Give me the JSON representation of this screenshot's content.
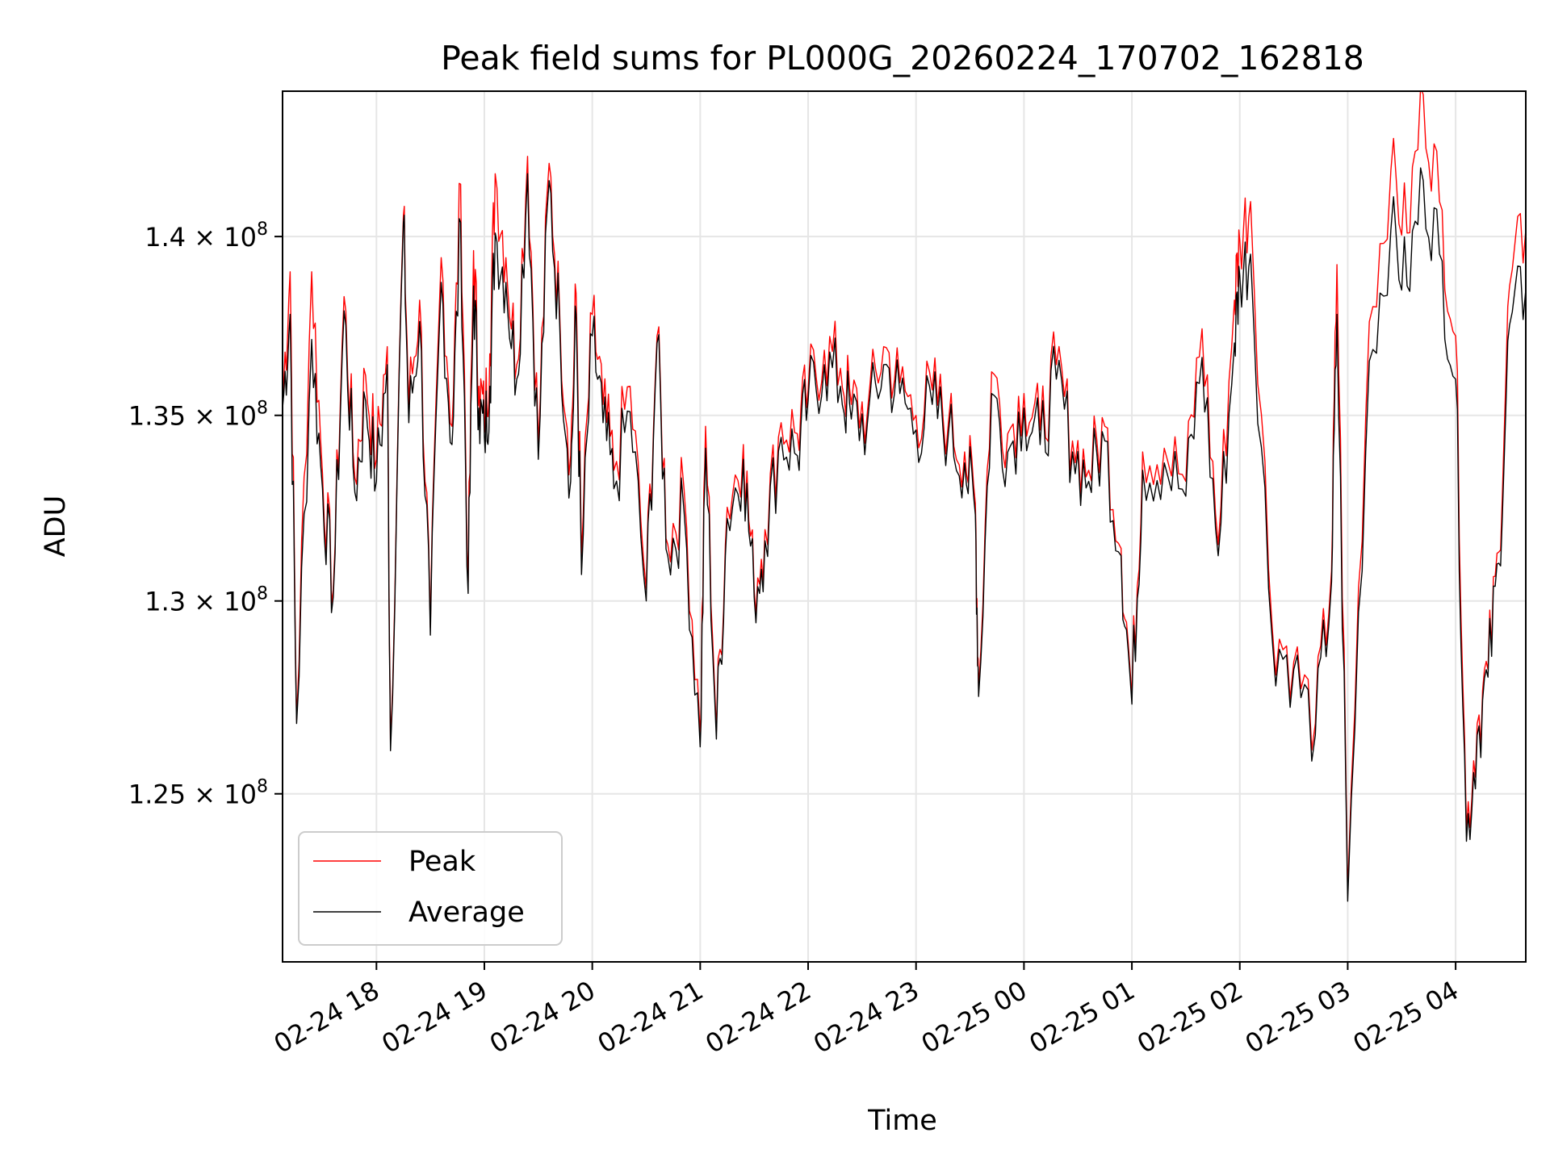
{
  "chart_data": {
    "type": "line",
    "title": "Peak field sums for PL000G_20260224_170702_162818",
    "xlabel": "Time",
    "ylabel": "ADU",
    "y_scale": "log",
    "ylim": [
      120800000,
      144200000
    ],
    "x_range_hours": [
      -0.87,
      10.65
    ],
    "x_tick_hours": [
      0,
      1,
      2,
      3,
      4,
      5,
      6,
      7,
      8,
      9,
      10
    ],
    "x_tick_labels": [
      "02-24 18",
      "02-24 19",
      "02-24 20",
      "02-24 21",
      "02-24 22",
      "02-24 23",
      "02-25 00",
      "02-25 01",
      "02-25 02",
      "02-25 03",
      "02-25 04"
    ],
    "y_ticks": [
      125000000,
      130000000,
      135000000,
      140000000
    ],
    "y_tick_labels": [
      {
        "mantissa": "1.25",
        "times": "×",
        "base": "10",
        "exponent": "8"
      },
      {
        "mantissa": "1.3",
        "times": "×",
        "base": "10",
        "exponent": "8"
      },
      {
        "mantissa": "1.35",
        "times": "×",
        "base": "10",
        "exponent": "8"
      },
      {
        "mantissa": "1.4",
        "times": "×",
        "base": "10",
        "exponent": "8"
      }
    ],
    "grid": true,
    "legend_position": "lower-left",
    "series": [
      {
        "name": "Peak",
        "color": "#ff0000"
      },
      {
        "name": "Average",
        "color": "#000000"
      }
    ],
    "x_hours": [
      -0.87,
      -0.8,
      -0.74,
      -0.6,
      -0.5,
      -0.4,
      -0.3,
      -0.2,
      -0.1,
      0.0,
      0.1,
      0.13,
      0.25,
      0.3,
      0.4,
      0.5,
      0.6,
      0.7,
      0.78,
      0.85,
      0.9,
      0.95,
      1.0,
      1.05,
      1.1,
      1.2,
      1.3,
      1.4,
      1.5,
      1.6,
      1.7,
      1.8,
      1.85,
      1.9,
      2.0,
      2.1,
      2.2,
      2.35,
      2.5,
      2.6,
      2.7,
      2.85,
      3.0,
      3.05,
      3.15,
      3.25,
      3.4,
      3.5,
      3.6,
      3.75,
      3.9,
      4.0,
      4.15,
      4.3,
      4.4,
      4.55,
      4.7,
      4.85,
      5.0,
      5.15,
      5.3,
      5.45,
      5.55,
      5.58,
      5.7,
      5.85,
      6.0,
      6.15,
      6.3,
      6.45,
      6.6,
      6.75,
      6.9,
      7.0,
      7.1,
      7.3,
      7.5,
      7.65,
      7.8,
      7.95,
      8.0,
      8.1,
      8.3,
      8.5,
      8.7,
      8.85,
      8.9,
      9.0,
      9.2,
      9.4,
      9.55,
      9.7,
      9.85,
      10.0,
      10.1,
      10.2,
      10.3,
      10.4,
      10.5,
      10.65
    ],
    "average": [
      135200000,
      137800000,
      126800000,
      137100000,
      133000000,
      130100000,
      137900000,
      132900000,
      135400000,
      133200000,
      136400000,
      126100000,
      140400000,
      134800000,
      137600000,
      129100000,
      138700000,
      134200000,
      140400000,
      130200000,
      138600000,
      135200000,
      134400000,
      135800000,
      140100000,
      138700000,
      136000000,
      141800000,
      133800000,
      141600000,
      137300000,
      133200000,
      137800000,
      130700000,
      137200000,
      134800000,
      133000000,
      135100000,
      130000000,
      137000000,
      131200000,
      132400000,
      126200000,
      134100000,
      126400000,
      132200000,
      133800000,
      130100000,
      131600000,
      134400000,
      133900000,
      135400000,
      136400000,
      135800000,
      134900000,
      134800000,
      136400000,
      135600000,
      134600000,
      135300000,
      134500000,
      133700000,
      132300000,
      127500000,
      135600000,
      134000000,
      135200000,
      134200000,
      136000000,
      134000000,
      133200000,
      134300000,
      131200000,
      127300000,
      133500000,
      133700000,
      132800000,
      136600000,
      131200000,
      137000000,
      138900000,
      139500000,
      129000000,
      128200000,
      126500000,
      130500000,
      137800000,
      122300000,
      136500000,
      140200000,
      138600000,
      141600000,
      139500000,
      136000000,
      123800000,
      126500000,
      128000000,
      131000000,
      137500000,
      138500000
    ],
    "peak": [
      135400000,
      139000000,
      126900000,
      139000000,
      133400000,
      130300000,
      138300000,
      133300000,
      136100000,
      133800000,
      136900000,
      126300000,
      140600000,
      135300000,
      138200000,
      129300000,
      139400000,
      134700000,
      141500000,
      130500000,
      139600000,
      135800000,
      134900000,
      136700000,
      141800000,
      139400000,
      136400000,
      142300000,
      134200000,
      142100000,
      137600000,
      133900000,
      138400000,
      131200000,
      137800000,
      135300000,
      133500000,
      135800000,
      130300000,
      137200000,
      131500000,
      133000000,
      126500000,
      134700000,
      126600000,
      132500000,
      134200000,
      130300000,
      131900000,
      134800000,
      134500000,
      135700000,
      136800000,
      136300000,
      135300000,
      135100000,
      136900000,
      135900000,
      135000000,
      135700000,
      134800000,
      134000000,
      132600000,
      127700000,
      136200000,
      134500000,
      135600000,
      134600000,
      136400000,
      134300000,
      133500000,
      134700000,
      131400000,
      127500000,
      134000000,
      134100000,
      133200000,
      137400000,
      131500000,
      138200000,
      139900000,
      141000000,
      129300000,
      128400000,
      126800000,
      130800000,
      139200000,
      122500000,
      137600000,
      141900000,
      140100000,
      144100000,
      141000000,
      137200000,
      124100000,
      126800000,
      128200000,
      131300000,
      138600000,
      140200000
    ]
  }
}
